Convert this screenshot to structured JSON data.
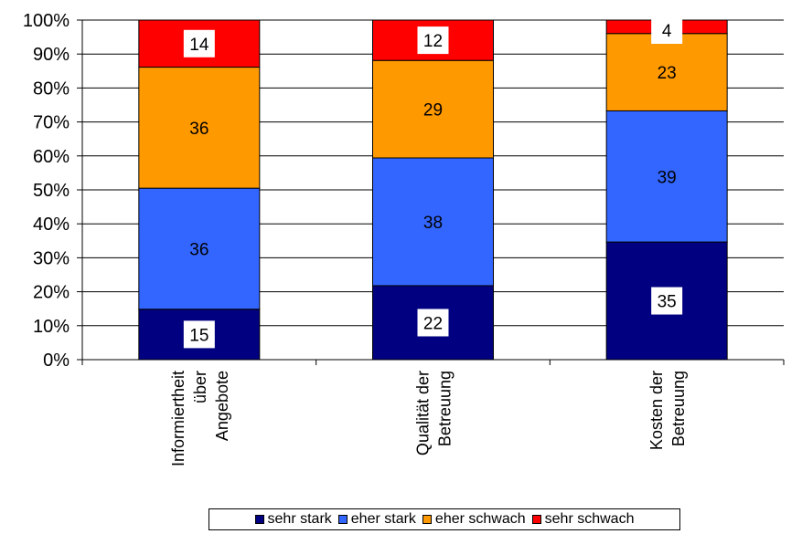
{
  "chart_data": {
    "type": "bar",
    "stacked": "percent",
    "categories": [
      [
        "Informiertheit",
        "über",
        "Angebote"
      ],
      [
        "Qualität der",
        "Betreuung"
      ],
      [
        "Kosten der",
        "Betreuung"
      ]
    ],
    "series": [
      {
        "name": "sehr stark",
        "color": "#000080",
        "values": [
          15,
          22,
          35
        ]
      },
      {
        "name": "eher stark",
        "color": "#3366ff",
        "values": [
          36,
          38,
          39
        ]
      },
      {
        "name": "eher schwach",
        "color": "#ff9900",
        "values": [
          36,
          29,
          23
        ]
      },
      {
        "name": "sehr schwach",
        "color": "#ff0000",
        "values": [
          14,
          12,
          4
        ]
      }
    ],
    "y_ticks": [
      "0%",
      "10%",
      "20%",
      "30%",
      "40%",
      "50%",
      "60%",
      "70%",
      "80%",
      "90%",
      "100%"
    ],
    "ylim": [
      0,
      100
    ],
    "grid": true,
    "legend_position": "bottom"
  }
}
